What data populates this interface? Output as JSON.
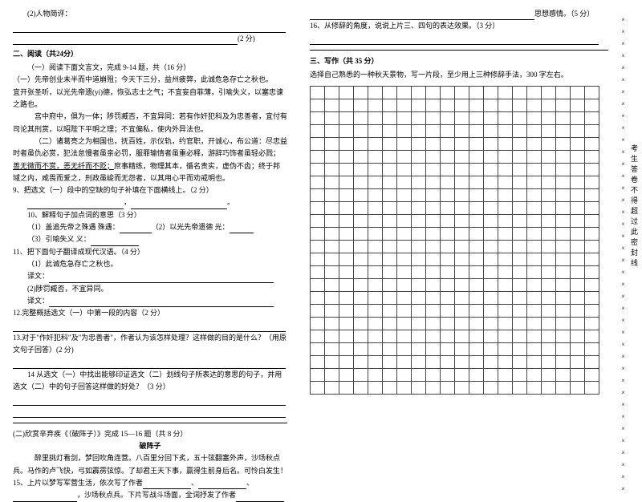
{
  "left": {
    "q_person": "(2)人物简评：",
    "score2": "(2 分)",
    "sec2_title": "二、阅读（共24分）",
    "sec2_intro": "（一）阅读下面文言文，完成 9-14 题，共（16 分）",
    "p1": "（一）先帝创业未半而中道崩殂；今天下三分，益州疲弊，此诚危急存亡之秋也。",
    "p2": "宜开张圣听，以光先帝遗(yí)德，恢弘志士之气；不宜妄自菲薄，引喻失义，以塞忠谏之路也。",
    "p3": "宫中府中，俱为一体；陟罚臧否，不宜异同：若有作奸犯科及为忠善者，宜付有司论其刑赏，以昭陛下平明之理；不宜偏私，使内外异法也。",
    "p4a": "（二）诸葛亮之为相国也，抚百姓，示仪轨，约官职，开诚心，布公道：尽忠益时者虽仇必赏，犯法怠慢者虽亲必罚，服罪输情者虽重必释，游辞巧饰者虽轻必戮；",
    "p4b": "善无微而不赏，恶无纤而不贬；",
    "p4c": "庶事精练，物理其本，循名责实，虚伪不齿；终于邦域之内，咸畏而爱之，刑政虽峻而无怨者，以其用心平而劝戒明也。",
    "q9": "9、把选文（一）段中的空缺的句子补填在下面横线上。（2 分）",
    "q10": "10、解释句子加点词的意思（3 分）",
    "q10_1a": "（1）盖追先帝之殊遇    殊遇：",
    "q10_1b": "（2）以光先帝遗德    光：",
    "q10_2": "（3）引喻失义    义：",
    "q11": "11、把下面句子翻译成现代汉语。（4 分）",
    "q11_1": "（1）此诚危急存亡之秋也。",
    "q11_y": "译文：",
    "q11_2": "(2)陟罚臧否，不宜异同。",
    "q12": "12.完整概括选文（一）中第一段的内容（2 分）",
    "q13": "13.对于\"作奸犯科\"及\"为忠善者\"，作者认为该怎样处理？这样做的目的是什么？（用原文句子回答）(2 分)",
    "q14": "14  从选文（一）中找出能够印证选文（二）划线句子所表达的意思的句子，并用选文（二）中的句子回答这样做的好处？（3 分）",
    "sec2b": "(二)欣赏辛弃疾《（破阵子）》完成 15—16 题（共 8 分）",
    "poem_title": "破阵子",
    "poem1": "醉里挑灯看剑，梦回吹角连营。八百里分回下炙，五十弦翻塞外声，沙场秋点兵。马作的卢飞快，弓如霹雳弦惊。了却君王天下事，赢得生前身后名。可怜白发生！",
    "q15": "15、上片以梦写军营生活，依次写了作者",
    "q15b": "，沙场秋点兵。下片写战斗场面，全词抒发了作者"
  },
  "right": {
    "emo": "思想感情。（5 分）",
    "q16": "16、从修辞的角度，说说上片三、四句的表达效果。（3 分）",
    "sec3_title": "三、写作（共 35 分）",
    "sec3_intro": "选择自己熟悉的一种秋天景物，写一片段，至少用上三种修辞手法，300 字左右。"
  },
  "sidebar": {
    "marks": "××××××××××××××××××××××××××××××××××××××××",
    "text": "考生答卷不得超过此密封线"
  },
  "grid": {
    "rows": 24,
    "cols": 20
  }
}
